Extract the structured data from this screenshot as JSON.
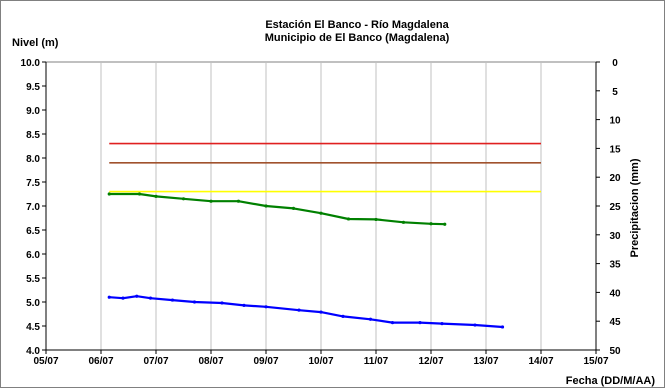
{
  "chart_data": {
    "type": "line",
    "title": "Estación El Banco - Río Magdalena",
    "subtitle": "Municipio de El Banco (Magdalena)",
    "ylabel": "Nivel (m)",
    "y2label": "Precipitacion (mm)",
    "xlabel": "Fecha (DD/M/AA)",
    "ylim": [
      4.0,
      10.0
    ],
    "y2lim": [
      0,
      50
    ],
    "y2_inverted": true,
    "xlim": [
      0,
      10
    ],
    "x_tick_labels": [
      "05/07",
      "06/07",
      "07/07",
      "08/07",
      "09/07",
      "10/07",
      "11/07",
      "12/07",
      "13/07",
      "14/07",
      "15/07"
    ],
    "y_tick_labels": [
      "4.0",
      "4.5",
      "5.0",
      "5.5",
      "6.0",
      "6.5",
      "7.0",
      "7.5",
      "8.0",
      "8.5",
      "9.0",
      "9.5",
      "10.0"
    ],
    "y2_tick_labels": [
      "0",
      "5",
      "10",
      "15",
      "20",
      "25",
      "30",
      "35",
      "40",
      "45",
      "50"
    ],
    "grid": "vertical",
    "legend": "none",
    "thresholds": [
      {
        "value": 8.3,
        "x": [
          1.15,
          9.0
        ],
        "color": "#e02020"
      },
      {
        "value": 7.9,
        "x": [
          1.15,
          9.0
        ],
        "color": "#a0522d"
      },
      {
        "value": 7.3,
        "x": [
          1.15,
          9.0
        ],
        "color": "#ffff00"
      }
    ],
    "series": [
      {
        "color": "#008000",
        "x": [
          1.15,
          1.7,
          2.0,
          2.5,
          3.0,
          3.5,
          4.0,
          4.5,
          5.0,
          5.5,
          6.0,
          6.5,
          7.0,
          7.25
        ],
        "values": [
          7.25,
          7.25,
          7.2,
          7.15,
          7.1,
          7.1,
          7.0,
          6.95,
          6.85,
          6.73,
          6.72,
          6.66,
          6.63,
          6.62
        ]
      },
      {
        "color": "#0000ff",
        "x": [
          1.15,
          1.4,
          1.65,
          1.9,
          2.3,
          2.7,
          3.2,
          3.6,
          4.0,
          4.6,
          5.0,
          5.4,
          5.9,
          6.3,
          6.8,
          7.2,
          7.8,
          8.3
        ],
        "values": [
          5.1,
          5.08,
          5.12,
          5.08,
          5.04,
          5.0,
          4.98,
          4.93,
          4.9,
          4.83,
          4.79,
          4.7,
          4.64,
          4.57,
          4.57,
          4.55,
          4.52,
          4.48
        ]
      }
    ]
  }
}
